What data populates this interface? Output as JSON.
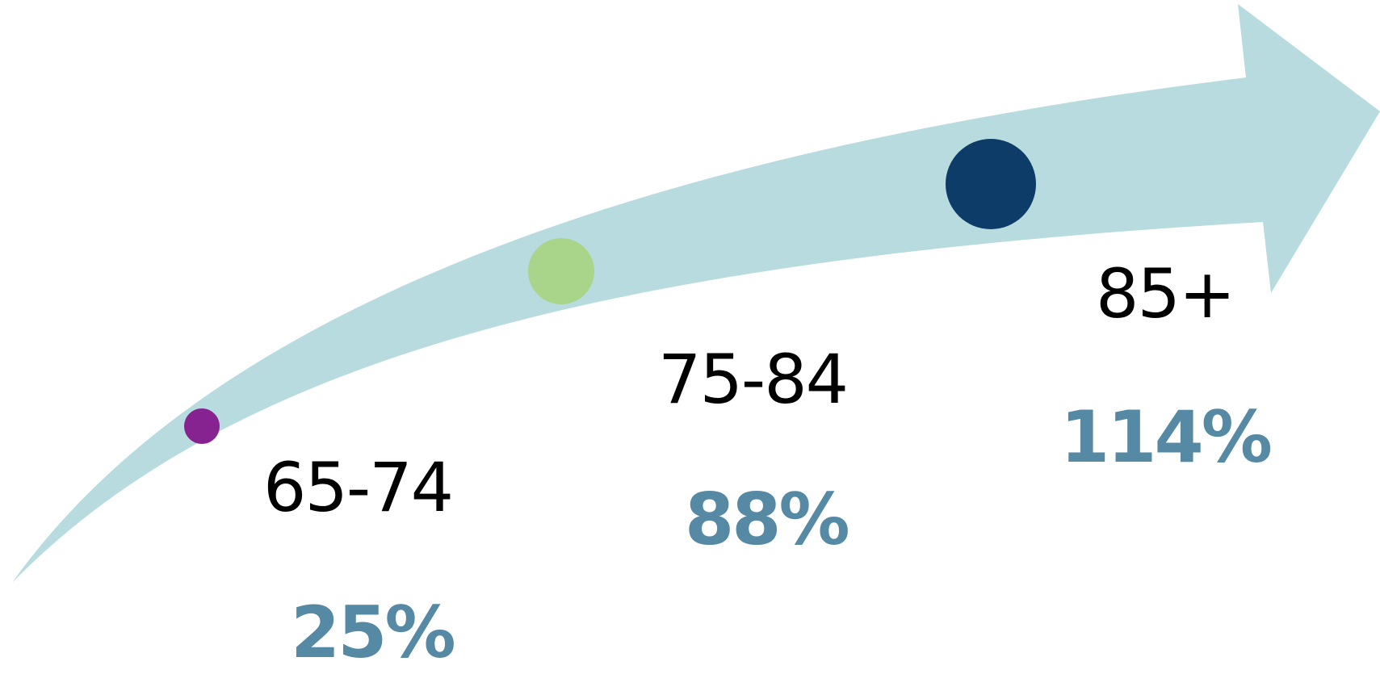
{
  "colors": {
    "arrow": "#b8dbdf",
    "percent_text": "#5589a4",
    "age_text": "#000000"
  },
  "stages": [
    {
      "age": "65-74",
      "percent": "25%",
      "dot_color": "#862390",
      "dot_name": "dot-65-74"
    },
    {
      "age": "75-84",
      "percent": "88%",
      "dot_color": "#a9d58a",
      "dot_name": "dot-75-84"
    },
    {
      "age": "85+",
      "percent": "114%",
      "dot_color": "#0d3c68",
      "dot_name": "dot-85-plus"
    }
  ]
}
